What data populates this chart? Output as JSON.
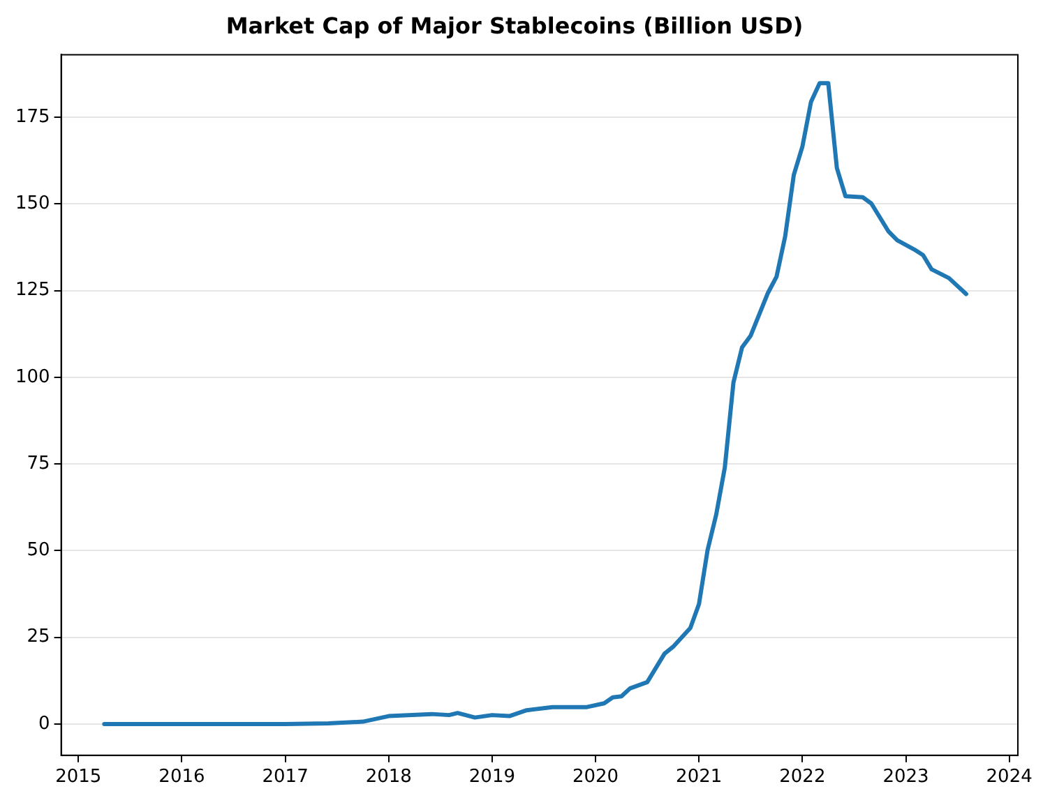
{
  "chart_data": {
    "type": "line",
    "title": "Market Cap of Major Stablecoins (Billion USD)",
    "x": [
      "2015-04",
      "2016-01",
      "2017-01",
      "2017-06",
      "2017-10",
      "2018-01",
      "2018-06",
      "2018-08",
      "2018-09",
      "2018-11",
      "2019-01",
      "2019-03",
      "2019-05",
      "2019-08",
      "2019-12",
      "2020-02",
      "2020-03",
      "2020-04",
      "2020-05",
      "2020-07",
      "2020-09",
      "2020-10",
      "2020-12",
      "2021-01",
      "2021-02",
      "2021-03",
      "2021-04",
      "2021-05",
      "2021-06",
      "2021-07",
      "2021-09",
      "2021-10",
      "2021-11",
      "2021-12",
      "2022-01",
      "2022-02",
      "2022-03",
      "2022-04",
      "2022-05",
      "2022-06",
      "2022-08",
      "2022-09",
      "2022-11",
      "2022-12",
      "2023-02",
      "2023-03",
      "2023-04",
      "2023-06",
      "2023-08"
    ],
    "series": [
      {
        "color": "#1f77b4",
        "values": [
          0,
          0,
          0,
          0.2,
          0.7,
          2.3,
          2.9,
          2.6,
          3.2,
          1.9,
          2.6,
          2.3,
          4.0,
          4.9,
          4.9,
          6.0,
          7.7,
          8.0,
          10.3,
          12.1,
          20.3,
          22.3,
          27.7,
          34.6,
          50.2,
          60.4,
          74,
          98.5,
          108.6,
          112,
          124.3,
          129,
          140.6,
          158.3,
          166.5,
          179.4,
          184.8,
          184.8,
          160.3,
          152.2,
          151.9,
          150.1,
          142,
          139.5,
          136.8,
          135.2,
          131.1,
          128.6,
          124
        ]
      }
    ],
    "xlim": [
      "2014-11",
      "2024-02"
    ],
    "xticks": [
      "2015",
      "2016",
      "2017",
      "2018",
      "2019",
      "2020",
      "2021",
      "2022",
      "2023",
      "2024"
    ],
    "ylim": [
      -9,
      193
    ],
    "yticks": [
      0,
      25,
      50,
      75,
      100,
      125,
      150,
      175
    ],
    "grid": "y",
    "legend": false,
    "marker": "none",
    "line_style": "solid"
  }
}
